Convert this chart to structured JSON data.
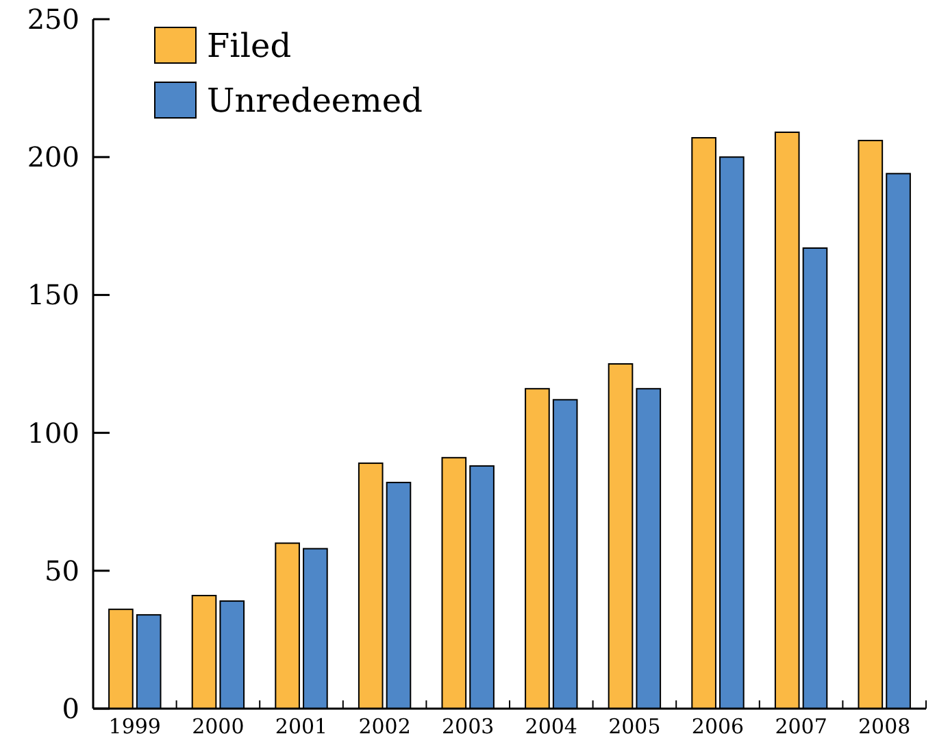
{
  "chart_data": {
    "type": "bar",
    "categories": [
      "1999",
      "2000",
      "2001",
      "2002",
      "2003",
      "2004",
      "2005",
      "2006",
      "2007",
      "2008"
    ],
    "series": [
      {
        "name": "Filed",
        "color": "#fbb944",
        "values": [
          36,
          41,
          60,
          89,
          91,
          116,
          125,
          207,
          209,
          206
        ]
      },
      {
        "name": "Unredeemed",
        "color": "#4e87c8",
        "values": [
          34,
          39,
          58,
          82,
          88,
          112,
          116,
          200,
          167,
          194
        ]
      }
    ],
    "ylim": [
      0,
      250
    ],
    "yticks": [
      0,
      50,
      100,
      150,
      200,
      250
    ],
    "grid": false,
    "legend": "top left"
  }
}
